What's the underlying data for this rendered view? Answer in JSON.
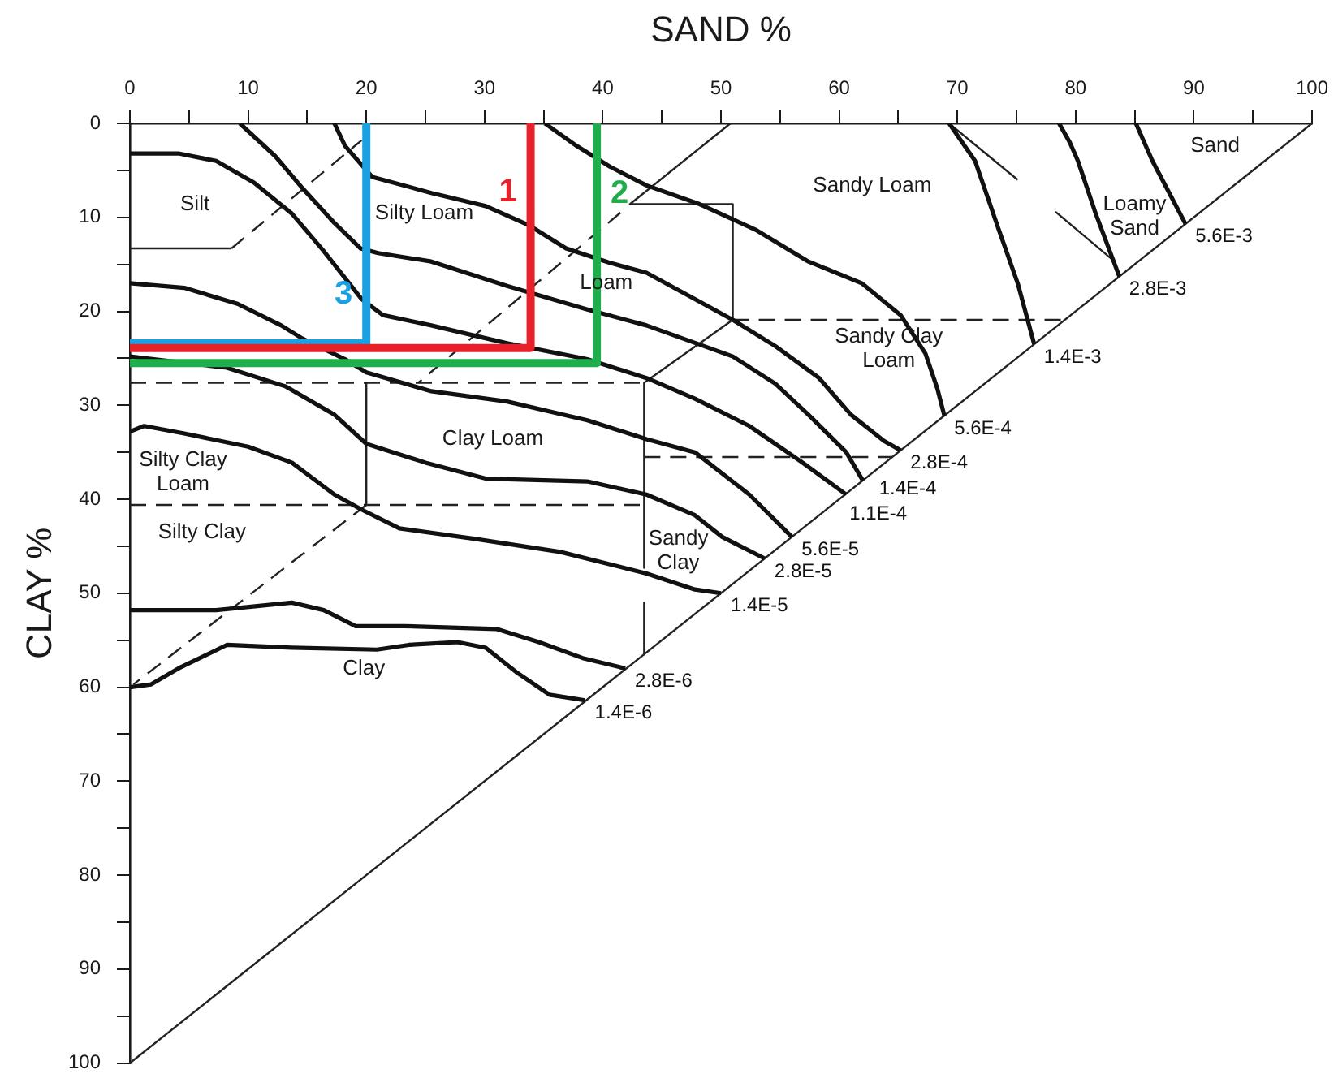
{
  "chart_data": {
    "type": "line",
    "xlabel": "SAND %",
    "ylabel": "CLAY %",
    "xlim": [
      0,
      100
    ],
    "ylim": [
      100,
      0
    ],
    "xticks": [
      0,
      {
        "value": 5,
        "label": null
      },
      10,
      {
        "value": 15,
        "label": null
      },
      20,
      {
        "value": 25,
        "label": null
      },
      30,
      {
        "value": 35,
        "label": null
      },
      40,
      {
        "value": 45,
        "label": null
      },
      50,
      {
        "value": 55,
        "label": null
      },
      60,
      {
        "value": 65,
        "label": null
      },
      70,
      {
        "value": 75,
        "label": null
      },
      80,
      {
        "value": 85,
        "label": null
      },
      90,
      {
        "value": 95,
        "label": null
      },
      100
    ],
    "yticks": [
      0,
      {
        "value": 5,
        "label": null
      },
      10,
      {
        "value": 15,
        "label": null
      },
      20,
      {
        "value": 25,
        "label": null
      },
      30,
      {
        "value": 35,
        "label": null
      },
      40,
      {
        "value": 45,
        "label": null
      },
      50,
      {
        "value": 55,
        "label": null
      },
      60,
      {
        "value": 65,
        "label": null
      },
      70,
      {
        "value": 75,
        "label": null
      },
      80,
      {
        "value": 85,
        "label": null
      },
      90,
      {
        "value": 95,
        "label": null
      },
      100
    ],
    "grid": false,
    "legend": false,
    "marker": "none",
    "line_style": "solid",
    "series": [
      {
        "name": "1",
        "color": "#e8202a",
        "x": [
          0,
          33.9,
          33.9
        ],
        "values": [
          23.9,
          23.9,
          0
        ]
      },
      {
        "name": "2",
        "color": "#1fae4b",
        "x": [
          0,
          39.5,
          39.5
        ],
        "values": [
          25.5,
          25.5,
          0
        ]
      },
      {
        "name": "3",
        "color": "#1ba1e2",
        "x": [
          0,
          20,
          20
        ],
        "values": [
          23.4,
          23.4,
          0
        ]
      },
      {
        "name": "5.6E-3",
        "color": "#111111",
        "x": [
          85.1,
          86.5,
          89.3
        ],
        "values": [
          0,
          4,
          10.7
        ]
      },
      {
        "name": "2.8E-3",
        "color": "#111111",
        "x": [
          78.6,
          79.5,
          80.2,
          81.7,
          83.7
        ],
        "values": [
          0,
          2,
          4,
          9.6,
          16.3
        ]
      },
      {
        "name": "1.4E-3",
        "color": "#111111",
        "x": [
          69.3,
          71.5,
          73.5,
          75.1,
          76.5
        ],
        "values": [
          0,
          4,
          11.3,
          17,
          23.5
        ]
      },
      {
        "name": "5.6E-4",
        "color": "#111111",
        "x": [
          35.1,
          37.8,
          40.6,
          43.7,
          48.2,
          52.9,
          57.4,
          61.9,
          65.2,
          67.3,
          68.3,
          68.9
        ],
        "values": [
          0,
          2.4,
          4.6,
          6.6,
          8.6,
          11.3,
          14.7,
          17,
          20.4,
          24.5,
          28.2,
          31.1
        ]
      },
      {
        "name": "2.8E-4",
        "color": "#111111",
        "x": [
          17.3,
          18.2,
          20.5,
          25.5,
          30.1,
          33.7,
          36.9,
          40.5,
          43.7,
          47.8,
          51,
          54.6,
          58.3,
          61,
          63.8,
          65.2
        ],
        "values": [
          0,
          2.4,
          5.7,
          7.4,
          8.8,
          10.8,
          13.3,
          14.8,
          15.9,
          18.7,
          20.9,
          23.7,
          27.1,
          31,
          33.8,
          34.8
        ]
      },
      {
        "name": "1.4E-4",
        "color": "#111111",
        "x": [
          9.3,
          12.3,
          14.6,
          17.3,
          19.5,
          21,
          25.5,
          31.9,
          38.7,
          43.7,
          51,
          54.6,
          57.4,
          60.6,
          62
        ],
        "values": [
          0,
          3.5,
          6.9,
          10.6,
          13.3,
          13.8,
          14.7,
          17.3,
          19.8,
          21.5,
          24.8,
          27.7,
          31,
          35,
          38
        ]
      },
      {
        "name": "1.1E-4",
        "color": "#111111",
        "x": [
          0,
          4.1,
          7.3,
          10.5,
          13.7,
          16.4,
          19.6,
          21.4,
          25.5,
          31.9,
          38.7,
          43.7,
          47.8,
          52.4,
          56.9,
          60.6
        ],
        "values": [
          3.2,
          3.2,
          4,
          6.3,
          9.6,
          13.6,
          18.7,
          20.4,
          21.5,
          23.4,
          25.1,
          27.1,
          29.3,
          32.2,
          36.1,
          39.5
        ]
      },
      {
        "name": "5.6E-5",
        "color": "#111111",
        "x": [
          0,
          4.6,
          9.1,
          12.8,
          14.6,
          18.2,
          20,
          25.5,
          31.9,
          38.7,
          43.7,
          47.8,
          52.4,
          56
        ],
        "values": [
          17,
          17.5,
          19.2,
          21.5,
          22.9,
          25.1,
          26.5,
          28.5,
          29.6,
          31.6,
          33.6,
          35,
          39.5,
          44
        ]
      },
      {
        "name": "2.8E-5",
        "color": "#111111",
        "x": [
          0,
          8.2,
          13.2,
          17.3,
          20,
          25,
          30.1,
          38.7,
          43.7,
          47.8,
          50.1,
          53.7
        ],
        "values": [
          24.8,
          26,
          28,
          31,
          34.1,
          36.1,
          37.8,
          38.1,
          39.5,
          41.7,
          44,
          46.3
        ]
      },
      {
        "name": "1.4E-5",
        "color": "#111111",
        "x": [
          0,
          1.2,
          4.6,
          10,
          13.7,
          17.3,
          19.6,
          22.8,
          29.1,
          36.4,
          43.7,
          47.8,
          50
        ],
        "values": [
          32.8,
          32.2,
          33,
          34.4,
          36.1,
          39.5,
          41.1,
          43.1,
          44.2,
          45.6,
          47.9,
          49.6,
          50
        ]
      },
      {
        "name": "2.8E-6",
        "color": "#111111",
        "x": [
          0,
          7.3,
          13.7,
          16.4,
          19.1,
          23.2,
          31,
          34.6,
          38.3,
          41.9
        ],
        "values": [
          51.8,
          51.8,
          51,
          51.8,
          53.5,
          53.5,
          53.8,
          55.2,
          56.9,
          58
        ]
      },
      {
        "name": "1.4E-6",
        "color": "#111111",
        "x": [
          0,
          1.8,
          4.1,
          8.2,
          13.7,
          20.9,
          23.6,
          27.7,
          30.1,
          32.8,
          35.5,
          38.5
        ],
        "values": [
          60,
          59.7,
          58,
          55.5,
          55.8,
          56,
          55.5,
          55.2,
          55.8,
          58.5,
          60.8,
          61.4
        ]
      },
      {
        "color": "#222222",
        "x": [
          0,
          8.6
        ],
        "values": [
          13.3,
          13.3
        ]
      },
      {
        "color": "#222222",
        "x": [
          8.6,
          19.6
        ],
        "values": [
          13.3,
          1.8
        ],
        "line_style": "dashed"
      },
      {
        "color": "#222222",
        "x": [
          41.5,
          24.4
        ],
        "values": [
          9.5,
          27.6
        ],
        "line_style": "dashed"
      },
      {
        "color": "#222222",
        "x": [
          50.8,
          42.3,
          51,
          51
        ],
        "values": [
          0,
          8.6,
          8.6,
          20.9
        ]
      },
      {
        "color": "#222222",
        "x": [
          51,
          79.1
        ],
        "values": [
          20.9,
          20.9
        ],
        "line_style": "dashed"
      },
      {
        "color": "#222222",
        "x": [
          51,
          43.5
        ],
        "values": [
          20.9,
          27.6
        ]
      },
      {
        "color": "#222222",
        "x": [
          0,
          43.5
        ],
        "values": [
          27.6,
          27.6
        ],
        "line_style": "dashed"
      },
      {
        "color": "#222222",
        "x": [
          20,
          20
        ],
        "values": [
          27.6,
          40.6
        ]
      },
      {
        "color": "#222222",
        "x": [
          43.5,
          43.5,
          null,
          43.5,
          43.5
        ],
        "values": [
          27.6,
          47.3,
          null,
          51,
          56.5
        ]
      },
      {
        "color": "#222222",
        "x": [
          0,
          43.5
        ],
        "values": [
          40.6,
          40.6
        ],
        "line_style": "dashed"
      },
      {
        "color": "#222222",
        "x": [
          43.5,
          64.5
        ],
        "values": [
          35.5,
          35.5
        ],
        "line_style": "dashed"
      },
      {
        "color": "#222222",
        "x": [
          20,
          0.3
        ],
        "values": [
          40.6,
          59.7
        ],
        "line_style": "dashed"
      },
      {
        "color": "#222222",
        "x": [
          69.3,
          75.1,
          null,
          78.3,
          83.3
        ],
        "values": [
          0,
          6,
          null,
          9.4,
          14.7
        ]
      },
      {
        "color": "#222222",
        "x": [
          100,
          0
        ],
        "values": [
          0,
          100
        ]
      }
    ],
    "annotations": [
      "Silt",
      "Silty Loam",
      "Loam",
      "Sandy Loam",
      "Loamy\nSand",
      "Sand",
      "Sandy Clay\nLoam",
      "Clay Loam",
      "Silty Clay\nLoam",
      "Silty Clay",
      "Sandy\nClay",
      "Clay"
    ]
  }
}
